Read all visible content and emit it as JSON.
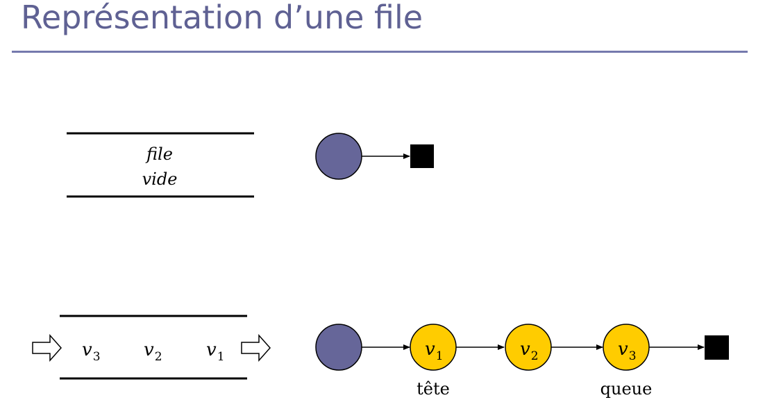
{
  "slide": {
    "title": "Représentation d’une file"
  },
  "colors": {
    "title": "#5f6193",
    "rule": "#7579ad",
    "head_node": "#666699",
    "element_node": "#ffcc00",
    "terminator": "#000000"
  },
  "empty_queue": {
    "label_line1": "file",
    "label_line2": "vide"
  },
  "full_queue": {
    "items": [
      {
        "letter": "v",
        "subscript": "3"
      },
      {
        "letter": "v",
        "subscript": "2"
      },
      {
        "letter": "v",
        "subscript": "1"
      }
    ]
  },
  "linked_list": {
    "nodes": [
      {
        "letter": "v",
        "subscript": "1"
      },
      {
        "letter": "v",
        "subscript": "2"
      },
      {
        "letter": "v",
        "subscript": "3"
      }
    ],
    "head_label": "tête",
    "tail_label": "queue"
  }
}
